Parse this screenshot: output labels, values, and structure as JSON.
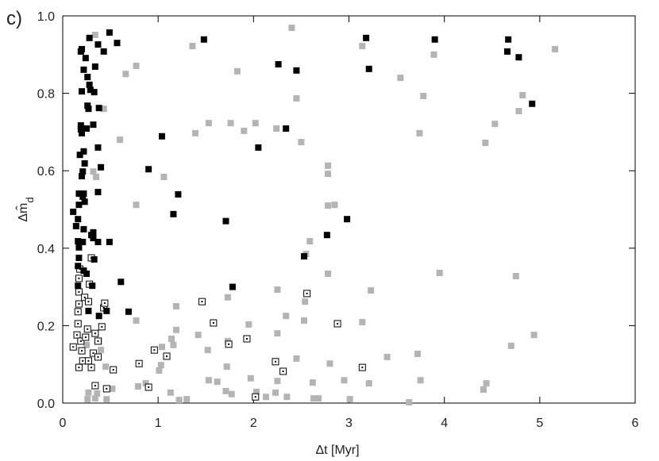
{
  "chart_data": {
    "type": "scatter",
    "title": "c)",
    "xlabel": "Δt [Myr]",
    "ylabel": {
      "text": "Δm̂",
      "subscript": "d"
    },
    "xlim": [
      0,
      6
    ],
    "ylim": [
      0,
      1
    ],
    "xticks": [
      0,
      1,
      2,
      3,
      4,
      5,
      6
    ],
    "yticks": [
      {
        "value": 0,
        "label": "0.0"
      },
      0.2,
      0.4,
      0.6,
      0.8,
      {
        "value": 1,
        "label": "1.0"
      }
    ],
    "series": [
      {
        "color": "#b4b4b4",
        "marker": "filled",
        "x": [
          0.34,
          2.4,
          1.36,
          3.14,
          3.89,
          5.16,
          0.77,
          0.66,
          1.83,
          3.54,
          3.78,
          4.82,
          0.43,
          2.45,
          4.78,
          1.76,
          1.53,
          2.02,
          2.24,
          1.9,
          1.39,
          3.74,
          4.53,
          0.6,
          2.5,
          4.43,
          1.06,
          2.78,
          2.78,
          0.32,
          0.35,
          0.77,
          2.78,
          2.85,
          2.59,
          2.55,
          2.78,
          3.95,
          4.75,
          2.25,
          3.23,
          1.73,
          2.54,
          1.19,
          2.34,
          1.95,
          2.53,
          3.14,
          0.77,
          1.19,
          1.42,
          1.14,
          1.16,
          1.04,
          1.52,
          2.25,
          1.73,
          3.72,
          3.4,
          2.45,
          0.38,
          1.03,
          1.72,
          1.01,
          0.45,
          2.8,
          2.25,
          1.97,
          1.53,
          1.62,
          2.62,
          2.95,
          3.75,
          3.21,
          4.44,
          4.41,
          0.79,
          0.87,
          0.52,
          1.13,
          1.71,
          1.77,
          2.03,
          2.23,
          1.22,
          1.3,
          2.13,
          2.35,
          2.63,
          2.68,
          3.01,
          3.63,
          0.27,
          0.26,
          0.34,
          0.36,
          0.46,
          4.7,
          4.94,
          0.25,
          0.4
        ],
        "values": [
          0.951,
          0.969,
          0.922,
          0.922,
          0.9,
          0.914,
          0.871,
          0.85,
          0.857,
          0.84,
          0.793,
          0.795,
          0.76,
          0.787,
          0.754,
          0.723,
          0.723,
          0.723,
          0.709,
          0.703,
          0.697,
          0.697,
          0.721,
          0.68,
          0.674,
          0.672,
          0.584,
          0.613,
          0.592,
          0.598,
          0.584,
          0.512,
          0.51,
          0.512,
          0.418,
          0.385,
          0.334,
          0.336,
          0.328,
          0.293,
          0.291,
          0.273,
          0.262,
          0.25,
          0.225,
          0.203,
          0.213,
          0.209,
          0.213,
          0.189,
          0.176,
          0.166,
          0.15,
          0.145,
          0.137,
          0.18,
          0.16,
          0.127,
          0.119,
          0.115,
          0.16,
          0.098,
          0.094,
          0.084,
          0.094,
          0.102,
          0.057,
          0.064,
          0.059,
          0.055,
          0.053,
          0.059,
          0.059,
          0.051,
          0.051,
          0.035,
          0.043,
          0.051,
          0.037,
          0.027,
          0.031,
          0.023,
          0.029,
          0.027,
          0.008,
          0.01,
          0.016,
          0.016,
          0.012,
          0.012,
          0.01,
          0.002,
          0.027,
          0.01,
          0.012,
          0.025,
          0.01,
          0.148,
          0.176,
          0.15,
          0.137
        ]
      },
      {
        "color": "#000000",
        "marker": "open",
        "x": [
          0.11,
          0.15,
          0.16,
          0.16,
          0.17,
          0.17,
          0.17,
          0.2,
          0.21,
          0.17,
          0.19,
          0.23,
          0.27,
          0.26,
          0.24,
          0.27,
          0.3,
          0.32,
          0.34,
          0.37,
          0.41,
          0.43,
          0.44,
          0.37,
          0.34,
          0.46,
          0.53,
          0.8,
          0.9,
          0.96,
          1.09,
          1.46,
          1.58,
          1.74,
          1.93,
          2.23,
          2.31,
          2.56,
          2.88,
          3.14,
          2.02,
          0.18,
          0.3,
          0.28
        ],
        "values": [
          0.145,
          0.176,
          0.205,
          0.236,
          0.256,
          0.287,
          0.322,
          0.135,
          0.109,
          0.092,
          0.16,
          0.273,
          0.262,
          0.191,
          0.17,
          0.109,
          0.092,
          0.129,
          0.18,
          0.16,
          0.197,
          0.246,
          0.258,
          0.119,
          0.045,
          0.037,
          0.086,
          0.102,
          0.041,
          0.137,
          0.121,
          0.262,
          0.207,
          0.152,
          0.166,
          0.107,
          0.082,
          0.283,
          0.205,
          0.092,
          0.016,
          0.346,
          0.375,
          0.307
        ]
      },
      {
        "color": "#000000",
        "marker": "filled",
        "x": [
          0.28,
          0.49,
          0.57,
          0.37,
          0.2,
          0.19,
          0.43,
          0.24,
          0.22,
          0.34,
          0.26,
          0.28,
          0.2,
          0.29,
          0.33,
          0.26,
          0.27,
          0.38,
          0.19,
          0.19,
          0.25,
          0.32,
          0.2,
          0.37,
          0.22,
          0.18,
          0.23,
          0.4,
          0.21,
          0.2,
          0.37,
          0.17,
          0.22,
          0.21,
          0.23,
          0.17,
          0.11,
          0.16,
          0.14,
          0.22,
          0.32,
          0.16,
          0.21,
          0.3,
          0.32,
          0.37,
          0.49,
          0.17,
          0.17,
          0.33,
          0.16,
          0.22,
          0.25,
          0.16,
          0.31,
          0.61,
          0.38,
          0.27,
          0.46,
          1.48,
          1.04,
          0.9,
          1.21,
          1.16,
          1.71,
          1.78,
          2.05,
          2.26,
          2.45,
          2.34,
          2.53,
          2.77,
          2.98,
          3.18,
          3.21,
          3.9,
          4.67,
          4.66,
          4.78,
          4.92,
          0.69
        ],
        "values": [
          0.943,
          0.957,
          0.93,
          0.926,
          0.914,
          0.908,
          0.908,
          0.891,
          0.861,
          0.869,
          0.842,
          0.822,
          0.805,
          0.809,
          0.803,
          0.768,
          0.76,
          0.762,
          0.717,
          0.707,
          0.709,
          0.719,
          0.697,
          0.66,
          0.65,
          0.641,
          0.619,
          0.609,
          0.598,
          0.586,
          0.545,
          0.541,
          0.541,
          0.533,
          0.52,
          0.512,
          0.494,
          0.475,
          0.457,
          0.449,
          0.441,
          0.418,
          0.416,
          0.434,
          0.426,
          0.416,
          0.416,
          0.402,
          0.375,
          0.371,
          0.354,
          0.342,
          0.334,
          0.303,
          0.303,
          0.313,
          0.225,
          0.238,
          0.238,
          0.939,
          0.689,
          0.604,
          0.539,
          0.488,
          0.47,
          0.3,
          0.66,
          0.875,
          0.859,
          0.709,
          0.379,
          0.434,
          0.475,
          0.943,
          0.863,
          0.939,
          0.939,
          0.908,
          0.893,
          0.773,
          0.236
        ]
      }
    ]
  }
}
